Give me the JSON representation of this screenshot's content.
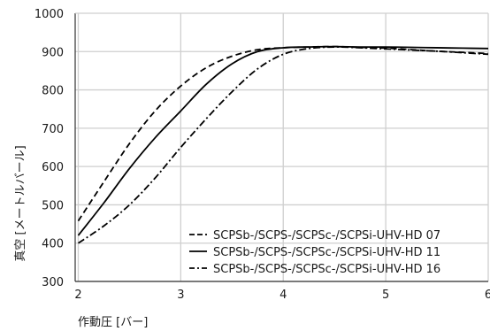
{
  "chart_data": {
    "type": "line",
    "xlabel": "作動圧 [バー]",
    "ylabel": "真空 [メートルバール]",
    "xlim": [
      1.97,
      6.0
    ],
    "ylim": [
      300,
      1000
    ],
    "x_ticks": [
      "2",
      "3",
      "4",
      "5",
      "6"
    ],
    "y_ticks": [
      "300",
      "400",
      "500",
      "600",
      "700",
      "800",
      "900",
      "1000"
    ],
    "grid": true,
    "legend_position": "bottom-right",
    "series": [
      {
        "name": "SCPSb-/SCPS-/SCPSc-/SCPSi-UHV-HD 07",
        "line_style": "dashed",
        "color": "#000000",
        "points": [
          [
            2.0,
            458
          ],
          [
            2.25,
            560
          ],
          [
            2.5,
            660
          ],
          [
            2.75,
            745
          ],
          [
            3.0,
            810
          ],
          [
            3.25,
            858
          ],
          [
            3.5,
            888
          ],
          [
            3.75,
            905
          ],
          [
            4.0,
            910
          ],
          [
            4.25,
            912
          ],
          [
            4.5,
            913
          ],
          [
            4.75,
            911
          ],
          [
            5.0,
            909
          ],
          [
            5.25,
            905
          ],
          [
            5.5,
            901
          ],
          [
            5.75,
            898
          ],
          [
            6.0,
            895
          ]
        ]
      },
      {
        "name": "SCPSb-/SCPS-/SCPSc-/SCPSi-UHV-HD 11",
        "line_style": "solid",
        "color": "#000000",
        "points": [
          [
            2.0,
            420
          ],
          [
            2.25,
            505
          ],
          [
            2.5,
            595
          ],
          [
            2.75,
            675
          ],
          [
            3.0,
            745
          ],
          [
            3.25,
            815
          ],
          [
            3.5,
            868
          ],
          [
            3.75,
            900
          ],
          [
            4.0,
            910
          ],
          [
            4.25,
            912
          ],
          [
            4.5,
            913
          ],
          [
            4.75,
            912
          ],
          [
            5.0,
            912
          ],
          [
            5.25,
            911
          ],
          [
            5.5,
            910
          ],
          [
            5.75,
            909
          ],
          [
            6.0,
            908
          ]
        ]
      },
      {
        "name": "SCPSb-/SCPS-/SCPSc-/SCPSi-UHV-HD 16",
        "line_style": "dashdot",
        "color": "#000000",
        "points": [
          [
            2.0,
            400
          ],
          [
            2.25,
            445
          ],
          [
            2.5,
            500
          ],
          [
            2.75,
            570
          ],
          [
            3.0,
            650
          ],
          [
            3.25,
            725
          ],
          [
            3.5,
            795
          ],
          [
            3.75,
            855
          ],
          [
            4.0,
            893
          ],
          [
            4.25,
            908
          ],
          [
            4.5,
            912
          ],
          [
            4.75,
            910
          ],
          [
            5.0,
            907
          ],
          [
            5.25,
            904
          ],
          [
            5.5,
            901
          ],
          [
            5.75,
            897
          ],
          [
            6.0,
            893
          ]
        ]
      }
    ]
  }
}
